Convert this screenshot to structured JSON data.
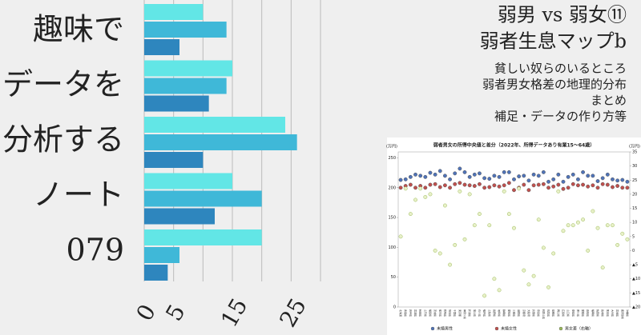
{
  "left_title": [
    "趣味で",
    "データを",
    "分析する",
    "ノート",
    "079"
  ],
  "right_text": {
    "title": [
      "弱男 vs 弱女⑪",
      "弱者生息マップb"
    ],
    "items": [
      "貧しい奴らのいるところ",
      "弱者男女格差の地理的分布",
      "まとめ",
      "補足・データの作り方等"
    ]
  },
  "chart_data": [
    {
      "type": "bar",
      "orientation": "horizontal",
      "categories": [
        null,
        null,
        null,
        null,
        null
      ],
      "series": [
        {
          "color": "#62e6e6",
          "values": [
            10,
            15,
            24,
            15,
            20
          ]
        },
        {
          "color": "#3fb8d8",
          "values": [
            14,
            14,
            26,
            20,
            6
          ]
        },
        {
          "color": "#2e86be",
          "values": [
            6,
            11,
            10,
            12,
            4
          ]
        }
      ],
      "xlim": [
        0,
        30
      ],
      "xticks": [
        0,
        5,
        15,
        25
      ],
      "grid_lines": [
        10,
        20,
        30
      ]
    },
    {
      "type": "scatter",
      "title": "弱者男女の所得中央値と差分（2022年、所得データあり有業15～64歳）",
      "ylabel": "(万円)",
      "y2label": "(万円)",
      "categories": [
        "北海道",
        "青森県",
        "岩手県",
        "宮城県",
        "秋田県",
        "山形県",
        "福島県",
        "茨城県",
        "栃木県",
        "群馬県",
        "埼玉県",
        "千葉県",
        "東京都",
        "神奈川県",
        "新潟県",
        "富山県",
        "石川県",
        "福井県",
        "山梨県",
        "長野県",
        "岐阜県",
        "静岡県",
        "愛知県",
        "三重県",
        "滋賀県",
        "京都府",
        "大阪府",
        "兵庫県",
        "奈良県",
        "和歌山県",
        "鳥取県",
        "島根県",
        "岡山県",
        "広島県",
        "山口県",
        "徳島県",
        "香川県",
        "愛媛県",
        "高知県",
        "福岡県",
        "佐賀県",
        "長崎県",
        "熊本県",
        "大分県",
        "宮崎県",
        "鹿児島県",
        "沖縄県"
      ],
      "series": [
        {
          "name": "未婚男性",
          "color": "#4f73b8",
          "values": [
            213,
            214,
            218,
            222,
            220,
            218,
            225,
            222,
            228,
            220,
            214,
            224,
            232,
            226,
            218,
            222,
            224,
            216,
            215,
            220,
            218,
            226,
            226,
            214,
            219,
            220,
            212,
            222,
            220,
            226,
            210,
            214,
            222,
            210,
            218,
            222,
            214,
            226,
            220,
            220,
            211,
            216,
            222,
            214,
            212,
            213,
            210
          ]
        },
        {
          "name": "未婚女性",
          "color": "#c0504d",
          "values": [
            200,
            203,
            205,
            200,
            203,
            200,
            205,
            206,
            201,
            204,
            200,
            206,
            208,
            205,
            204,
            203,
            206,
            200,
            201,
            204,
            202,
            204,
            208,
            196,
            200,
            205,
            196,
            204,
            205,
            206,
            200,
            202,
            205,
            198,
            200,
            206,
            204,
            205,
            202,
            204,
            200,
            206,
            205,
            201,
            203,
            200,
            200
          ]
        },
        {
          "name": "男女差（右軸）",
          "color": "#9bbb59",
          "axis": "y2",
          "values": [
            5,
            22,
            13,
            18,
            22,
            19,
            20,
            0,
            -1,
            16,
            -5,
            2,
            21,
            4,
            20,
            9,
            13,
            -16,
            9,
            -10,
            -14,
            21,
            13,
            8,
            22,
            -7,
            -12,
            -9,
            11,
            1,
            -13,
            -1,
            21,
            7,
            9,
            9,
            10,
            11,
            0,
            14,
            8,
            -6,
            9,
            9,
            2,
            6,
            4
          ]
        }
      ],
      "ylim": [
        0,
        260
      ],
      "yticks": [
        0,
        50,
        100,
        150,
        200,
        250
      ],
      "y2lim": [
        -20,
        35
      ],
      "y2ticks": [
        35,
        30,
        25,
        20,
        15,
        10,
        5,
        0,
        {
          "value": -5,
          "label": "▲5"
        },
        {
          "value": -10,
          "label": "▲10"
        },
        {
          "value": -15,
          "label": "▲15"
        },
        {
          "value": -20,
          "label": "▲20"
        }
      ]
    }
  ]
}
